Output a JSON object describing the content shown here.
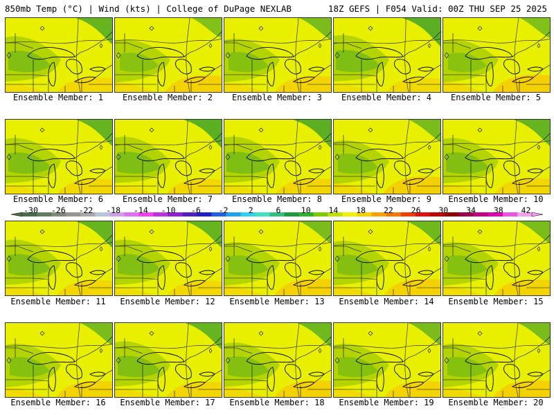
{
  "header": {
    "title_left": "850mb Temp (°C) | Wind (kts) | College of DuPage NEXLAB",
    "title_right": "18Z GEFS | F054 Valid: 00Z THU SEP 25 2025"
  },
  "panels": [
    {
      "label": "Ensemble Member: 1",
      "warm": 0.5,
      "cool": 0.6
    },
    {
      "label": "Ensemble Member: 2",
      "warm": 0.8,
      "cool": 0.3
    },
    {
      "label": "Ensemble Member: 3",
      "warm": 0.7,
      "cool": 0.4
    },
    {
      "label": "Ensemble Member: 4",
      "warm": 0.4,
      "cool": 0.7
    },
    {
      "label": "Ensemble Member: 5",
      "warm": 0.9,
      "cool": 0.3
    },
    {
      "label": "Ensemble Member: 6",
      "warm": 0.5,
      "cool": 0.6
    },
    {
      "label": "Ensemble Member: 7",
      "warm": 0.5,
      "cool": 0.7
    },
    {
      "label": "Ensemble Member: 8",
      "warm": 0.6,
      "cool": 0.7
    },
    {
      "label": "Ensemble Member: 9",
      "warm": 0.9,
      "cool": 0.4
    },
    {
      "label": "Ensemble Member: 10",
      "warm": 0.6,
      "cool": 0.6
    },
    {
      "label": "Ensemble Member: 11",
      "warm": 0.6,
      "cool": 0.6
    },
    {
      "label": "Ensemble Member: 12",
      "warm": 0.5,
      "cool": 0.6
    },
    {
      "label": "Ensemble Member: 13",
      "warm": 0.8,
      "cool": 0.4
    },
    {
      "label": "Ensemble Member: 14",
      "warm": 0.8,
      "cool": 0.5
    },
    {
      "label": "Ensemble Member: 15",
      "warm": 0.7,
      "cool": 0.4
    },
    {
      "label": "Ensemble Member: 16",
      "warm": 0.7,
      "cool": 0.4
    },
    {
      "label": "Ensemble Member: 17",
      "warm": 0.6,
      "cool": 0.6
    },
    {
      "label": "Ensemble Member: 18",
      "warm": 0.8,
      "cool": 0.5
    },
    {
      "label": "Ensemble Member: 19",
      "warm": 0.7,
      "cool": 0.4
    },
    {
      "label": "Ensemble Member: 20",
      "warm": 0.8,
      "cool": 0.4
    }
  ],
  "colorbar": {
    "labels": [
      "-30",
      "-26",
      "-22",
      "-18",
      "-14",
      "-10",
      "-6",
      "-2",
      "2",
      "6",
      "10",
      "14",
      "18",
      "22",
      "26",
      "30",
      "34",
      "38",
      "42"
    ],
    "colors": [
      "#4c6b4c",
      "#647a64",
      "#7d8a7d",
      "#969696",
      "#a8a8a8",
      "#b8c4d8",
      "#d0a0e8",
      "#e070f0",
      "#f040f0",
      "#c030e0",
      "#9020d0",
      "#5020c0",
      "#2020c8",
      "#2060e0",
      "#20a0f0",
      "#30d0f0",
      "#40e0c0",
      "#30c080",
      "#209840",
      "#30b030",
      "#80c800",
      "#c0e000",
      "#f0f000",
      "#f8d000",
      "#f8a000",
      "#f07800",
      "#f04000",
      "#e01010",
      "#c00000",
      "#900000",
      "#a00050",
      "#c00080",
      "#e000b0",
      "#f050e0",
      "#f8a0f0"
    ]
  },
  "colors": {
    "yellow": "#e8f000",
    "lime": "#b4d400",
    "green": "#70b818",
    "darkgreen": "#2e9a2e",
    "orange": "#f8c800",
    "boundary": "#000000"
  }
}
